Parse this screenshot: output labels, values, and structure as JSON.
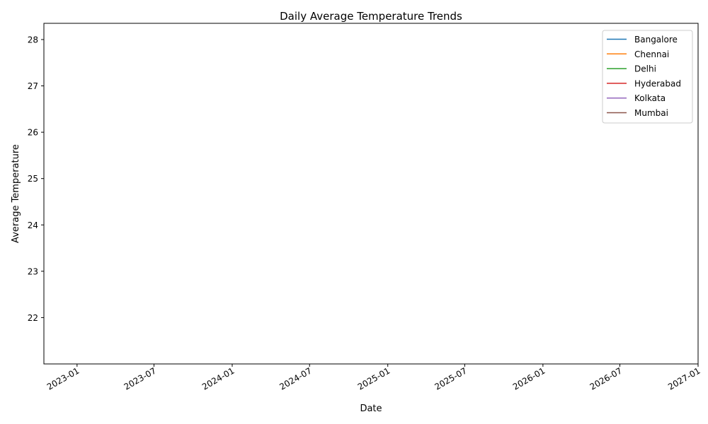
{
  "chart_data": {
    "type": "line",
    "title": "Daily Average Temperature Trends",
    "xlabel": "Date",
    "ylabel": "Average Temperature",
    "x_ticks": [
      "2023-01",
      "2023-07",
      "2024-01",
      "2024-07",
      "2025-01",
      "2025-07",
      "2026-01",
      "2026-07",
      "2027-01"
    ],
    "y_ticks": [
      22,
      23,
      24,
      25,
      26,
      27,
      28
    ],
    "xlim": [
      "2022-10-15",
      "2027-01-01"
    ],
    "ylim": [
      21.0,
      28.35
    ],
    "legend_position": "top-right",
    "grid": false,
    "series": [
      {
        "name": "Bangalore",
        "color": "#1f77b4",
        "points": []
      },
      {
        "name": "Chennai",
        "color": "#ff7f0e",
        "points": []
      },
      {
        "name": "Delhi",
        "color": "#2ca02c",
        "points": []
      },
      {
        "name": "Hyderabad",
        "color": "#d62728",
        "points": []
      },
      {
        "name": "Kolkata",
        "color": "#9467bd",
        "points": []
      },
      {
        "name": "Mumbai",
        "color": "#8c564b",
        "points": []
      }
    ]
  }
}
